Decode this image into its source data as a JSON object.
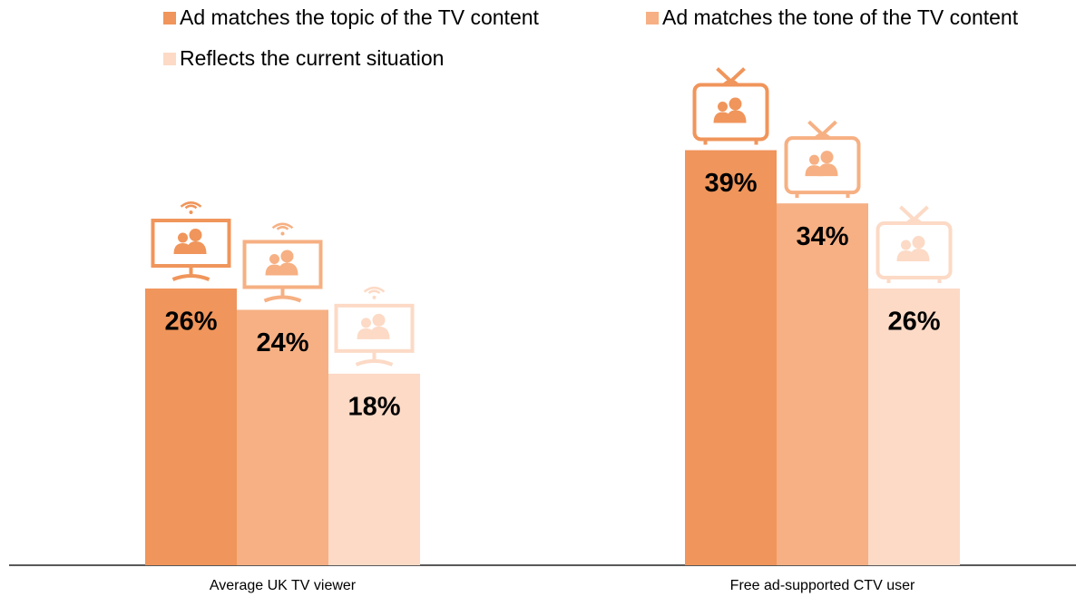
{
  "chart_data": {
    "type": "bar",
    "categories": [
      "Average UK TV viewer",
      "Free ad-supported CTV user"
    ],
    "series": [
      {
        "name": "Ad matches the topic of the TV content",
        "color": "#f0955b",
        "values": [
          26,
          39
        ],
        "value_labels": [
          "26%",
          "39%"
        ]
      },
      {
        "name": "Ad matches the tone of the TV content",
        "color": "#f6b083",
        "values": [
          24,
          34
        ],
        "value_labels": [
          "24%",
          "34%"
        ]
      },
      {
        "name": "Reflects the current situation",
        "color": "#fcdac6",
        "values": [
          18,
          26
        ],
        "value_labels": [
          "18%",
          "26%"
        ]
      }
    ]
  }
}
